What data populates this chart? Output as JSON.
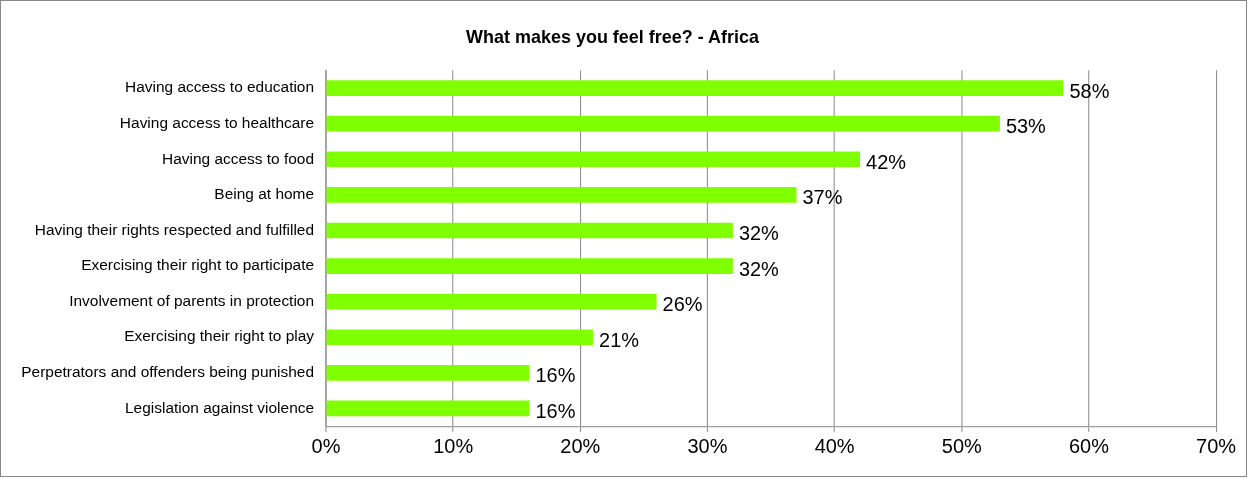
{
  "chart_data": {
    "type": "bar",
    "orientation": "horizontal",
    "title": "What makes you feel free? - Africa",
    "categories": [
      "Having access to education",
      "Having access to healthcare",
      "Having access to food",
      "Being at home",
      "Having their rights respected and fulfilled",
      "Exercising their right to participate",
      "Involvement of parents in protection",
      "Exercising their right to play",
      "Perpetrators and offenders being punished",
      "Legislation against violence"
    ],
    "values": [
      58,
      53,
      42,
      37,
      32,
      32,
      26,
      21,
      16,
      16
    ],
    "value_labels": [
      "58%",
      "53%",
      "42%",
      "37%",
      "32%",
      "32%",
      "26%",
      "21%",
      "16%",
      "16%"
    ],
    "color": "#80ff00",
    "xlim": [
      0,
      70
    ],
    "xticks": [
      {
        "value": 0,
        "label": "0%"
      },
      {
        "value": 10,
        "label": "10%"
      },
      {
        "value": 20,
        "label": "20%"
      },
      {
        "value": 30,
        "label": "30%"
      },
      {
        "value": 40,
        "label": "40%"
      },
      {
        "value": 50,
        "label": "50%"
      },
      {
        "value": 60,
        "label": "60%"
      },
      {
        "value": 70,
        "label": "70%"
      }
    ],
    "grid": "x",
    "legend": false
  }
}
